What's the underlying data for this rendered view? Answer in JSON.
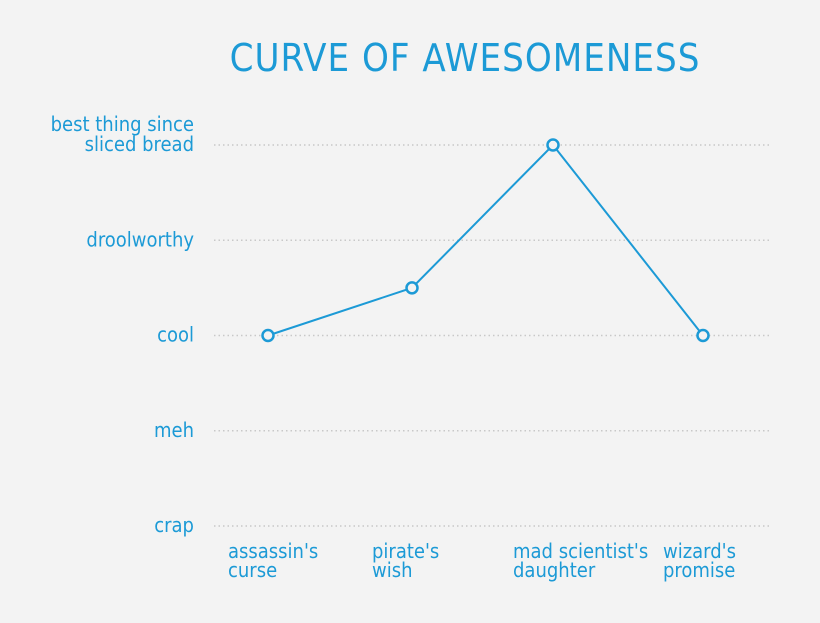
{
  "chart_data": {
    "type": "line",
    "title": "CURVE OF AWESOMENESS",
    "xlabel": "",
    "ylabel": "",
    "categories": [
      [
        "assassin's",
        "curse"
      ],
      [
        "pirate's",
        "wish"
      ],
      [
        "mad scientist's",
        "daughter"
      ],
      [
        "wizard's",
        "promise"
      ]
    ],
    "y_levels": [
      [
        "crap"
      ],
      [
        "meh"
      ],
      [
        "cool"
      ],
      [
        "droolworthy"
      ],
      [
        "best thing since",
        "sliced bread"
      ]
    ],
    "ylim": [
      0,
      4
    ],
    "series": [
      {
        "values": [
          2,
          2.5,
          4,
          2
        ]
      }
    ],
    "grid": true,
    "legend": "none",
    "colors": {
      "accent": "#1c9ad6",
      "grid": "#c8c8c8",
      "background": "#f3f3f3"
    }
  }
}
